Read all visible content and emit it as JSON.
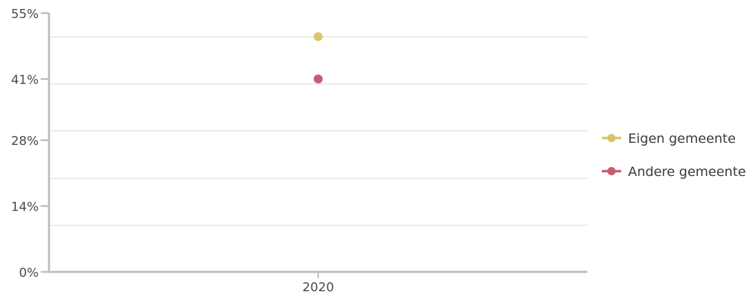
{
  "chart_data": {
    "type": "scatter",
    "title": "",
    "xlabel": "",
    "ylabel": "",
    "categories": [
      "2020"
    ],
    "ylim": [
      0,
      55
    ],
    "yticks": [
      {
        "value": 0,
        "label": "0%"
      },
      {
        "value": 14,
        "label": "14%"
      },
      {
        "value": 28,
        "label": "28%"
      },
      {
        "value": 41,
        "label": "41%"
      },
      {
        "value": 55,
        "label": "55%"
      }
    ],
    "grid_values": [
      10,
      20,
      30,
      40,
      50
    ],
    "grid": true,
    "legend_position": "right",
    "series": [
      {
        "name": "Eigen gemeente",
        "color": "#d9c56b",
        "values": [
          50
        ]
      },
      {
        "name": "Andere gemeente",
        "color": "#c95b6d",
        "values": [
          41
        ]
      }
    ]
  }
}
